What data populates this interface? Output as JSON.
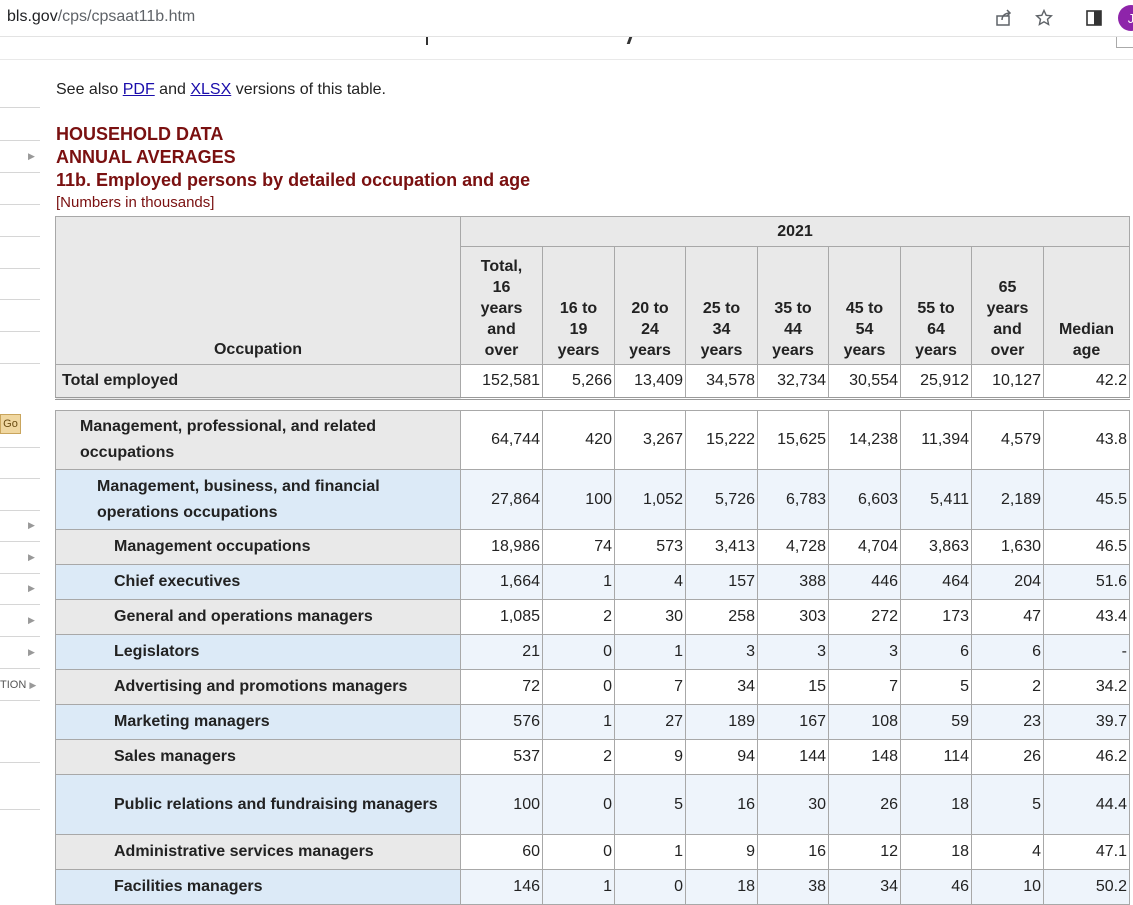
{
  "browser": {
    "url_domain": "bls.gov",
    "url_path": "/cps/cpsaat11b.htm",
    "profile_initial": "J"
  },
  "sidebar": {
    "go_label": "Go",
    "cut_label": "TION"
  },
  "page": {
    "see_also_prefix": "See also",
    "pdf_link": "PDF",
    "and_text": "and",
    "xlsx_link": "XLSX",
    "see_also_suffix": "versions of this table.",
    "title1": "HOUSEHOLD DATA",
    "title2": "ANNUAL AVERAGES",
    "title3": "11b. Employed persons by detailed occupation and age",
    "note": "[Numbers in thousands]"
  },
  "table": {
    "year": "2021",
    "occupation_header": "Occupation",
    "columns": [
      [
        "Total,",
        "16",
        "years",
        "and",
        "over"
      ],
      [
        "16 to",
        "19",
        "years"
      ],
      [
        "20 to",
        "24",
        "years"
      ],
      [
        "25 to",
        "34",
        "years"
      ],
      [
        "35 to",
        "44",
        "years"
      ],
      [
        "45 to",
        "54",
        "years"
      ],
      [
        "55 to",
        "64",
        "years"
      ],
      [
        "65",
        "years",
        "and",
        "over"
      ],
      [
        "Median",
        "age"
      ]
    ],
    "rows": [
      {
        "label": "Total employed",
        "values": [
          "152,581",
          "5,266",
          "13,409",
          "34,578",
          "32,734",
          "30,554",
          "25,912",
          "10,127",
          "42.2"
        ]
      },
      {
        "label": "Management, professional, and related occupations",
        "values": [
          "64,744",
          "420",
          "3,267",
          "15,222",
          "15,625",
          "14,238",
          "11,394",
          "4,579",
          "43.8"
        ]
      },
      {
        "label": "Management, business, and financial operations occupations",
        "values": [
          "27,864",
          "100",
          "1,052",
          "5,726",
          "6,783",
          "6,603",
          "5,411",
          "2,189",
          "45.5"
        ]
      },
      {
        "label": "Management occupations",
        "values": [
          "18,986",
          "74",
          "573",
          "3,413",
          "4,728",
          "4,704",
          "3,863",
          "1,630",
          "46.5"
        ]
      },
      {
        "label": "Chief executives",
        "values": [
          "1,664",
          "1",
          "4",
          "157",
          "388",
          "446",
          "464",
          "204",
          "51.6"
        ]
      },
      {
        "label": "General and operations managers",
        "values": [
          "1,085",
          "2",
          "30",
          "258",
          "303",
          "272",
          "173",
          "47",
          "43.4"
        ]
      },
      {
        "label": "Legislators",
        "values": [
          "21",
          "0",
          "1",
          "3",
          "3",
          "3",
          "6",
          "6",
          "-"
        ]
      },
      {
        "label": "Advertising and promotions managers",
        "values": [
          "72",
          "0",
          "7",
          "34",
          "15",
          "7",
          "5",
          "2",
          "34.2"
        ]
      },
      {
        "label": "Marketing managers",
        "values": [
          "576",
          "1",
          "27",
          "189",
          "167",
          "108",
          "59",
          "23",
          "39.7"
        ]
      },
      {
        "label": "Sales managers",
        "values": [
          "537",
          "2",
          "9",
          "94",
          "144",
          "148",
          "114",
          "26",
          "46.2"
        ]
      },
      {
        "label": "Public relations and fundraising managers",
        "values": [
          "100",
          "0",
          "5",
          "16",
          "30",
          "26",
          "18",
          "5",
          "44.4"
        ]
      },
      {
        "label": "Administrative services managers",
        "values": [
          "60",
          "0",
          "1",
          "9",
          "16",
          "12",
          "18",
          "4",
          "47.1"
        ]
      },
      {
        "label": "Facilities managers",
        "values": [
          "146",
          "1",
          "0",
          "18",
          "38",
          "34",
          "46",
          "10",
          "50.2"
        ]
      }
    ]
  }
}
